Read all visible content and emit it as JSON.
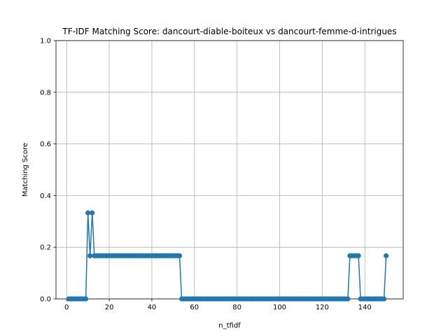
{
  "chart_data": {
    "type": "line",
    "title": "TF-IDF Matching Score: dancourt-diable-boiteux vs dancourt-femme-d-intrigues",
    "xlabel": "n_tfidf",
    "ylabel": "Matching Score",
    "xlim": [
      -5,
      158
    ],
    "ylim": [
      0,
      1
    ],
    "xticks": [
      0,
      20,
      40,
      60,
      80,
      100,
      120,
      140
    ],
    "yticks": [
      0.0,
      0.2,
      0.4,
      0.6,
      0.8,
      1.0
    ],
    "xtick_labels": [
      "0",
      "20",
      "40",
      "60",
      "80",
      "100",
      "120",
      "140"
    ],
    "ytick_labels": [
      "0.0",
      "0.2",
      "0.4",
      "0.6",
      "0.8",
      "1.0"
    ],
    "grid": true,
    "marker": "o",
    "color": "#1f77b4",
    "series": [
      {
        "x": [
          1,
          2,
          3,
          4,
          5,
          6,
          7,
          8,
          9,
          10,
          11,
          12,
          13,
          14,
          15,
          16,
          17,
          18,
          19,
          20,
          21,
          22,
          23,
          24,
          25,
          26,
          27,
          28,
          29,
          30,
          31,
          32,
          33,
          34,
          35,
          36,
          37,
          38,
          39,
          40,
          41,
          42,
          43,
          44,
          45,
          46,
          47,
          48,
          49,
          50,
          51,
          52,
          53,
          54,
          55,
          56,
          57,
          58,
          59,
          60,
          61,
          62,
          63,
          64,
          65,
          66,
          67,
          68,
          69,
          70,
          71,
          72,
          73,
          74,
          75,
          76,
          77,
          78,
          79,
          80,
          81,
          82,
          83,
          84,
          85,
          86,
          87,
          88,
          89,
          90,
          91,
          92,
          93,
          94,
          95,
          96,
          97,
          98,
          99,
          100,
          101,
          102,
          103,
          104,
          105,
          106,
          107,
          108,
          109,
          110,
          111,
          112,
          113,
          114,
          115,
          116,
          117,
          118,
          119,
          120,
          121,
          122,
          123,
          124,
          125,
          126,
          127,
          128,
          129,
          130,
          131,
          132,
          133,
          134,
          135,
          136,
          137,
          138,
          139,
          140,
          141,
          142,
          143,
          144,
          145,
          146,
          147,
          148,
          149,
          150
        ],
        "y": [
          0,
          0,
          0,
          0,
          0,
          0,
          0,
          0,
          0,
          0.333,
          0.167,
          0.333,
          0.167,
          0.167,
          0.167,
          0.167,
          0.167,
          0.167,
          0.167,
          0.167,
          0.167,
          0.167,
          0.167,
          0.167,
          0.167,
          0.167,
          0.167,
          0.167,
          0.167,
          0.167,
          0.167,
          0.167,
          0.167,
          0.167,
          0.167,
          0.167,
          0.167,
          0.167,
          0.167,
          0.167,
          0.167,
          0.167,
          0.167,
          0.167,
          0.167,
          0.167,
          0.167,
          0.167,
          0.167,
          0.167,
          0.167,
          0.167,
          0.167,
          0,
          0,
          0,
          0,
          0,
          0,
          0,
          0,
          0,
          0,
          0,
          0,
          0,
          0,
          0,
          0,
          0,
          0,
          0,
          0,
          0,
          0,
          0,
          0,
          0,
          0,
          0,
          0,
          0,
          0,
          0,
          0,
          0,
          0,
          0,
          0,
          0,
          0,
          0,
          0,
          0,
          0,
          0,
          0,
          0,
          0,
          0,
          0,
          0,
          0,
          0,
          0,
          0,
          0,
          0,
          0,
          0,
          0,
          0,
          0,
          0,
          0,
          0,
          0,
          0,
          0,
          0,
          0,
          0,
          0,
          0,
          0,
          0,
          0,
          0,
          0,
          0,
          0,
          0,
          0.167,
          0.167,
          0.167,
          0.167,
          0.167,
          0,
          0,
          0,
          0,
          0,
          0,
          0,
          0,
          0,
          0,
          0,
          0,
          0.167
        ]
      }
    ]
  }
}
